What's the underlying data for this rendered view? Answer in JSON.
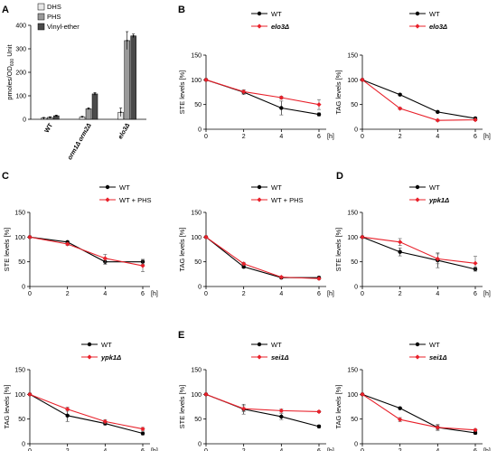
{
  "chart_data": [
    {
      "panel": "A",
      "type": "bar",
      "ylabel": "pmoles/OD600 Unit",
      "ylim": [
        0,
        400
      ],
      "yticks": [
        "0",
        "100",
        "200",
        "300",
        "400"
      ],
      "categories": [
        "WT",
        "orm1Δ orm2Δ",
        "elo3Δ"
      ],
      "category_italic": [
        false,
        true,
        true
      ],
      "series": [
        {
          "name": "DHS",
          "color": "#e8e8e8",
          "values": [
            5,
            10,
            30
          ],
          "errors": [
            3,
            3,
            18
          ]
        },
        {
          "name": "PHS",
          "color": "#9a9a9a",
          "values": [
            8,
            45,
            335
          ],
          "errors": [
            3,
            4,
            38
          ]
        },
        {
          "name": "Vinyl-ether",
          "color": "#4a4a4a",
          "values": [
            15,
            108,
            355
          ],
          "errors": [
            3,
            6,
            8
          ]
        }
      ]
    },
    {
      "panel": "B",
      "type": "line",
      "ylabel": "STE levels [%]",
      "xunit": "[h]",
      "ylim": [
        0,
        150
      ],
      "yticks": [
        "0",
        "50",
        "100",
        "150"
      ],
      "xticks": [
        "0",
        "2",
        "4",
        "6"
      ],
      "x": [
        0,
        2,
        4,
        6
      ],
      "series": [
        {
          "name": "WT",
          "italic": false,
          "color": "#000000",
          "values": [
            100,
            75,
            43,
            30
          ],
          "errors": [
            0,
            5,
            14,
            3
          ]
        },
        {
          "name": "elo3Δ",
          "italic": true,
          "color": "#e8202a",
          "values": [
            100,
            76,
            64,
            50
          ],
          "errors": [
            0,
            4,
            3,
            10
          ]
        }
      ]
    },
    {
      "panel": "",
      "type": "line",
      "ylabel": "TAG levels [%]",
      "xunit": "[h]",
      "ylim": [
        0,
        150
      ],
      "yticks": [
        "0",
        "50",
        "100",
        "150"
      ],
      "xticks": [
        "0",
        "2",
        "4",
        "6"
      ],
      "x": [
        0,
        2,
        4,
        6
      ],
      "series": [
        {
          "name": "WT",
          "italic": false,
          "color": "#000000",
          "values": [
            100,
            70,
            35,
            22
          ],
          "errors": [
            0,
            2,
            2,
            2
          ]
        },
        {
          "name": "elo3Δ",
          "italic": true,
          "color": "#e8202a",
          "values": [
            100,
            42,
            18,
            19
          ],
          "errors": [
            0,
            2,
            2,
            2
          ]
        }
      ]
    },
    {
      "panel": "C",
      "type": "line",
      "ylabel": "STE levels [%]",
      "xunit": "[h]",
      "ylim": [
        0,
        150
      ],
      "yticks": [
        "0",
        "50",
        "100",
        "150"
      ],
      "xticks": [
        "0",
        "2",
        "4",
        "6"
      ],
      "x": [
        0,
        2,
        4,
        6
      ],
      "series": [
        {
          "name": "WT",
          "italic": false,
          "color": "#000000",
          "values": [
            100,
            90,
            50,
            50
          ],
          "errors": [
            0,
            2,
            5,
            5
          ]
        },
        {
          "name": "WT + PHS",
          "italic": false,
          "color": "#e8202a",
          "values": [
            100,
            86,
            57,
            42
          ],
          "errors": [
            0,
            3,
            8,
            12
          ]
        }
      ]
    },
    {
      "panel": "",
      "type": "line",
      "ylabel": "TAG levels [%]",
      "xunit": "[h]",
      "ylim": [
        0,
        150
      ],
      "yticks": [
        "0",
        "50",
        "100",
        "150"
      ],
      "xticks": [
        "0",
        "2",
        "4",
        "6"
      ],
      "x": [
        0,
        2,
        4,
        6
      ],
      "series": [
        {
          "name": "WT",
          "italic": false,
          "color": "#000000",
          "values": [
            100,
            40,
            18,
            18
          ],
          "errors": [
            0,
            3,
            2,
            2
          ]
        },
        {
          "name": "WT + PHS",
          "italic": false,
          "color": "#e8202a",
          "values": [
            100,
            46,
            19,
            16
          ],
          "errors": [
            0,
            3,
            2,
            2
          ]
        }
      ]
    },
    {
      "panel": "D",
      "type": "line",
      "ylabel": "STE levels [%]",
      "xunit": "[h]",
      "ylim": [
        0,
        150
      ],
      "yticks": [
        "0",
        "50",
        "100",
        "150"
      ],
      "xticks": [
        "0",
        "2",
        "4",
        "6"
      ],
      "x": [
        0,
        2,
        4,
        6
      ],
      "series": [
        {
          "name": "WT",
          "italic": false,
          "color": "#000000",
          "values": [
            100,
            70,
            53,
            35
          ],
          "errors": [
            0,
            8,
            15,
            4
          ]
        },
        {
          "name": "ypk1Δ",
          "italic": true,
          "color": "#e8202a",
          "values": [
            100,
            90,
            56,
            47
          ],
          "errors": [
            0,
            7,
            10,
            14
          ]
        }
      ]
    },
    {
      "panel": "",
      "type": "line",
      "ylabel": "TAG levels [%]",
      "xunit": "[h]",
      "ylim": [
        0,
        150
      ],
      "yticks": [
        "0",
        "50",
        "100",
        "150"
      ],
      "xticks": [
        "0",
        "2",
        "4",
        "6"
      ],
      "x": [
        0,
        2,
        4,
        6
      ],
      "series": [
        {
          "name": "WT",
          "italic": false,
          "color": "#000000",
          "values": [
            100,
            57,
            41,
            21
          ],
          "errors": [
            0,
            12,
            3,
            3
          ]
        },
        {
          "name": "ypk1Δ",
          "italic": true,
          "color": "#e8202a",
          "values": [
            100,
            70,
            45,
            30
          ],
          "errors": [
            0,
            4,
            4,
            3
          ]
        }
      ]
    },
    {
      "panel": "E",
      "type": "line",
      "ylabel": "STE levels [%]",
      "xunit": "[h]",
      "ylim": [
        0,
        150
      ],
      "yticks": [
        "0",
        "50",
        "100",
        "150"
      ],
      "xticks": [
        "0",
        "2",
        "4",
        "6"
      ],
      "x": [
        0,
        2,
        4,
        6
      ],
      "series": [
        {
          "name": "WT",
          "italic": false,
          "color": "#000000",
          "values": [
            100,
            70,
            55,
            35
          ],
          "errors": [
            0,
            10,
            6,
            3
          ]
        },
        {
          "name": "sei1Δ",
          "italic": true,
          "color": "#e8202a",
          "values": [
            100,
            71,
            67,
            65
          ],
          "errors": [
            0,
            6,
            3,
            2
          ]
        }
      ]
    },
    {
      "panel": "",
      "type": "line",
      "ylabel": "TAG levels [%]",
      "xunit": "[h]",
      "ylim": [
        0,
        150
      ],
      "yticks": [
        "0",
        "50",
        "100",
        "150"
      ],
      "xticks": [
        "0",
        "2",
        "4",
        "6"
      ],
      "x": [
        0,
        2,
        4,
        6
      ],
      "series": [
        {
          "name": "WT",
          "italic": false,
          "color": "#000000",
          "values": [
            100,
            72,
            33,
            22
          ],
          "errors": [
            0,
            2,
            6,
            3
          ]
        },
        {
          "name": "sei1Δ",
          "italic": true,
          "color": "#e8202a",
          "values": [
            100,
            49,
            33,
            28
          ],
          "errors": [
            0,
            4,
            5,
            2
          ]
        }
      ]
    }
  ]
}
